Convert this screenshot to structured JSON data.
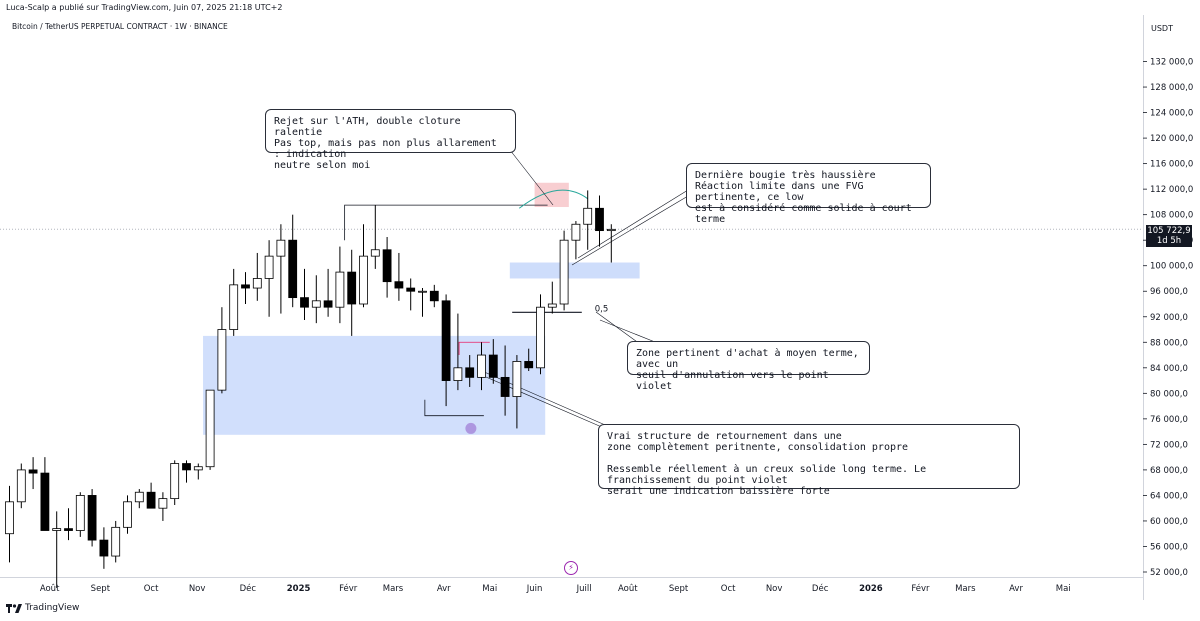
{
  "header": {
    "published": "Luca-Scalp a publié sur TradingView.com, Juin 07, 2025 21:18 UTC+2",
    "symbol": "Bitcoin / TetherUS PERPETUAL CONTRACT · 1W · BINANCE",
    "currency": "USDT"
  },
  "footer": {
    "brand": "TradingView"
  },
  "price_tag": {
    "price": "105 722,9",
    "countdown": "1d 5h"
  },
  "annotations": {
    "ath": "Rejet sur l'ATH, double cloture ralentie\nPas top, mais pas non plus allarement : indication\nneutre selon moi",
    "last_candle": "Dernière bougie très haussière\nRéaction limite dans une FVG pertinente, ce low\nest à considéré comme solide à court terme",
    "zone": "Zone pertinent d'achat à moyen terme, avec un\nseuil d'annulation vers le point violet",
    "structure": "Vrai structure de retournement dans une\nzone complètement peritnente, consolidation propre\n\nRessemble réellement à un creux solide long terme. Le franchissement du point violet\nserait une indication baissière forte",
    "fib_label": "0,5"
  },
  "chart_data": {
    "type": "candlestick",
    "timeframe": "1W",
    "y_axis": {
      "ticks": [
        52000,
        56000,
        60000,
        64000,
        68000,
        72000,
        76000,
        80000,
        84000,
        88000,
        92000,
        96000,
        100000,
        104000,
        108000,
        112000,
        116000,
        120000,
        124000,
        128000,
        132000
      ],
      "tick_labels": [
        "52 000,0",
        "56 000,0",
        "60 000,0",
        "64 000,0",
        "68 000,0",
        "72 000,0",
        "76 000,0",
        "80 000,0",
        "84 000,0",
        "88 000,0",
        "92 000,0",
        "96 000,0",
        "100 000,0",
        "104 000,0",
        "108 000,0",
        "112 000,0",
        "116 000,0",
        "120 000,0",
        "124 000,0",
        "128 000,0",
        "132 000,0"
      ],
      "range": [
        50200,
        137500
      ]
    },
    "x_axis": {
      "labels": [
        {
          "text": "Août",
          "week": 3.4
        },
        {
          "text": "Sept",
          "week": 7.7
        },
        {
          "text": "Oct",
          "week": 12.0
        },
        {
          "text": "Nov",
          "week": 15.9
        },
        {
          "text": "Déc",
          "week": 20.2
        },
        {
          "text": "2025",
          "week": 24.5,
          "bold": true
        },
        {
          "text": "Févr",
          "week": 28.7
        },
        {
          "text": "Mars",
          "week": 32.5
        },
        {
          "text": "Avr",
          "week": 36.8
        },
        {
          "text": "Mai",
          "week": 40.7
        },
        {
          "text": "Juin",
          "week": 44.5
        },
        {
          "text": "Juill",
          "week": 48.7
        },
        {
          "text": "Août",
          "week": 52.4
        },
        {
          "text": "Sept",
          "week": 56.7
        },
        {
          "text": "Oct",
          "week": 60.9
        },
        {
          "text": "Nov",
          "week": 64.8
        },
        {
          "text": "Déc",
          "week": 68.7
        },
        {
          "text": "2026",
          "week": 73.0,
          "bold": true
        },
        {
          "text": "Févr",
          "week": 77.2
        },
        {
          "text": "Mars",
          "week": 81.0
        },
        {
          "text": "Avr",
          "week": 85.3
        },
        {
          "text": "Mai",
          "week": 89.3
        }
      ]
    },
    "candles": [
      {
        "o": 58000,
        "h": 65500,
        "l": 53500,
        "c": 63000
      },
      {
        "o": 63000,
        "h": 69000,
        "l": 62000,
        "c": 68000
      },
      {
        "o": 68000,
        "h": 70000,
        "l": 65000,
        "c": 67500
      },
      {
        "o": 67500,
        "h": 70000,
        "l": 58500,
        "c": 58500
      },
      {
        "o": 58500,
        "h": 61500,
        "l": 49500,
        "c": 58800
      },
      {
        "o": 58800,
        "h": 62000,
        "l": 57000,
        "c": 58500
      },
      {
        "o": 58500,
        "h": 64500,
        "l": 57500,
        "c": 64000
      },
      {
        "o": 64000,
        "h": 65000,
        "l": 56000,
        "c": 57000
      },
      {
        "o": 57000,
        "h": 59000,
        "l": 52500,
        "c": 54500
      },
      {
        "o": 54500,
        "h": 60000,
        "l": 53500,
        "c": 59000
      },
      {
        "o": 59000,
        "h": 64000,
        "l": 58000,
        "c": 63000
      },
      {
        "o": 63000,
        "h": 65000,
        "l": 62000,
        "c": 64500
      },
      {
        "o": 64500,
        "h": 66000,
        "l": 62000,
        "c": 62000
      },
      {
        "o": 62000,
        "h": 64500,
        "l": 60000,
        "c": 63500
      },
      {
        "o": 63500,
        "h": 69500,
        "l": 62500,
        "c": 69000
      },
      {
        "o": 69000,
        "h": 69500,
        "l": 66000,
        "c": 68000
      },
      {
        "o": 68000,
        "h": 69000,
        "l": 66500,
        "c": 68500
      },
      {
        "o": 68500,
        "h": 80500,
        "l": 68000,
        "c": 80500
      },
      {
        "o": 80500,
        "h": 93500,
        "l": 80000,
        "c": 90000
      },
      {
        "o": 90000,
        "h": 99500,
        "l": 89000,
        "c": 97000
      },
      {
        "o": 97000,
        "h": 99000,
        "l": 94000,
        "c": 96500
      },
      {
        "o": 96500,
        "h": 102000,
        "l": 94500,
        "c": 98000
      },
      {
        "o": 98000,
        "h": 104000,
        "l": 92000,
        "c": 101500
      },
      {
        "o": 101500,
        "h": 106500,
        "l": 92500,
        "c": 104000
      },
      {
        "o": 104000,
        "h": 108000,
        "l": 93500,
        "c": 95000
      },
      {
        "o": 95000,
        "h": 99500,
        "l": 91500,
        "c": 93500
      },
      {
        "o": 93500,
        "h": 98500,
        "l": 91000,
        "c": 94500
      },
      {
        "o": 94500,
        "h": 99500,
        "l": 92000,
        "c": 93500
      },
      {
        "o": 93500,
        "h": 103000,
        "l": 91000,
        "c": 99000
      },
      {
        "o": 99000,
        "h": 102500,
        "l": 89000,
        "c": 94000
      },
      {
        "o": 94000,
        "h": 106500,
        "l": 93500,
        "c": 101500
      },
      {
        "o": 101500,
        "h": 109500,
        "l": 99500,
        "c": 102500
      },
      {
        "o": 102500,
        "h": 104500,
        "l": 95000,
        "c": 97500
      },
      {
        "o": 97500,
        "h": 102000,
        "l": 94500,
        "c": 96500
      },
      {
        "o": 96500,
        "h": 98000,
        "l": 93000,
        "c": 96000
      },
      {
        "o": 96000,
        "h": 96500,
        "l": 92000,
        "c": 96000
      },
      {
        "o": 96000,
        "h": 97000,
        "l": 93500,
        "c": 94500
      },
      {
        "o": 94500,
        "h": 95500,
        "l": 78000,
        "c": 82000
      },
      {
        "o": 82000,
        "h": 92500,
        "l": 80500,
        "c": 84000
      },
      {
        "o": 84000,
        "h": 86000,
        "l": 81000,
        "c": 82500
      },
      {
        "o": 82500,
        "h": 88000,
        "l": 80500,
        "c": 86000
      },
      {
        "o": 86000,
        "h": 88500,
        "l": 81500,
        "c": 82500
      },
      {
        "o": 82500,
        "h": 87500,
        "l": 76500,
        "c": 79500
      },
      {
        "o": 79500,
        "h": 86000,
        "l": 74500,
        "c": 85000
      },
      {
        "o": 85000,
        "h": 87000,
        "l": 83500,
        "c": 84000
      },
      {
        "o": 84000,
        "h": 95500,
        "l": 83000,
        "c": 93500
      },
      {
        "o": 93500,
        "h": 97500,
        "l": 92500,
        "c": 94000
      },
      {
        "o": 94000,
        "h": 105500,
        "l": 93000,
        "c": 104000
      },
      {
        "o": 104000,
        "h": 107000,
        "l": 101000,
        "c": 106500
      },
      {
        "o": 106500,
        "h": 111800,
        "l": 102500,
        "c": 109000
      },
      {
        "o": 109000,
        "h": 111000,
        "l": 103000,
        "c": 105500
      },
      {
        "o": 105500,
        "h": 106500,
        "l": 100500,
        "c": 105700
      }
    ],
    "colors": {
      "up": "#ffffff",
      "down": "#000000",
      "wick": "#000000",
      "zone": "#c9d9fb",
      "ath_zone": "#f7c9cc",
      "purple_dot": "#a78bdb"
    }
  }
}
